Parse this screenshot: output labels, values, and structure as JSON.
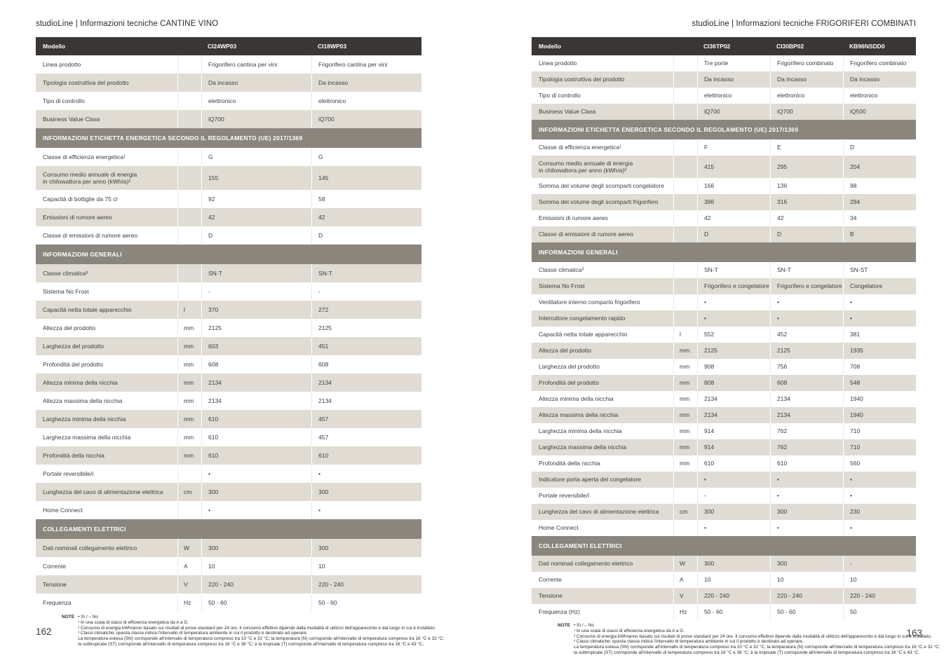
{
  "colors": {
    "model_header_bg": "#3a3634",
    "section_header_bg": "#8a857d",
    "row_alt_bg": "#e0dcd4",
    "row_bg": "#ffffff",
    "header_text": "#ffffff",
    "body_text": "#3f3c38"
  },
  "pages": [
    {
      "page_number": "162",
      "header": "studioLine | Informazioni tecniche CANTINE VINO",
      "table": {
        "model_header_label": "Modello",
        "models": [
          "CI24WP03",
          "CI18WP03"
        ],
        "sections": [
          {
            "title": "",
            "rows": [
              {
                "label": "Linea prodotto",
                "unit": "",
                "values": [
                  "Frigorifero cantina per vini",
                  "Frigorifero cantina per vini"
                ]
              },
              {
                "label": "Tipologia costruttiva del prodotto",
                "unit": "",
                "values": [
                  "Da incasso",
                  "Da incasso"
                ]
              },
              {
                "label": "Tipo di controllo",
                "unit": "",
                "values": [
                  "elettronico",
                  "elettronico"
                ]
              },
              {
                "label": "Business Value Class",
                "unit": "",
                "values": [
                  "iQ700",
                  "iQ700"
                ]
              }
            ]
          },
          {
            "title": "INFORMAZIONI ETICHETTA ENERGETICA SECONDO IL REGOLAMENTO (UE) 2017/1369",
            "rows": [
              {
                "label": "Classe di efficienza energetica¹",
                "unit": "",
                "values": [
                  "G",
                  "G"
                ]
              },
              {
                "label": "Consumo medio annuale di energia\nin chilowattora per anno (kWh/a)²",
                "unit": "",
                "values": [
                  "155",
                  "145"
                ]
              },
              {
                "label": "Capacità di bottiglie da 75 cl",
                "unit": "",
                "values": [
                  "92",
                  "58"
                ]
              },
              {
                "label": "Emissioni di rumore aereo",
                "unit": "",
                "values": [
                  "42",
                  "42"
                ]
              },
              {
                "label": "Classe di emissioni di rumore aereo",
                "unit": "",
                "values": [
                  "D",
                  "D"
                ]
              }
            ]
          },
          {
            "title": "INFORMAZIONI GENERALI",
            "rows": [
              {
                "label": "Classe climatica³",
                "unit": "",
                "values": [
                  "SN-T",
                  "SN-T"
                ]
              },
              {
                "label": "Sistema No Frost",
                "unit": "",
                "values": [
                  "-",
                  "-"
                ]
              },
              {
                "label": "Capacità netta totale apparecchio",
                "unit": "l",
                "values": [
                  "370",
                  "272"
                ]
              },
              {
                "label": "Altezza del prodotto",
                "unit": "mm",
                "values": [
                  "2125",
                  "2125"
                ]
              },
              {
                "label": "Larghezza del prodotto",
                "unit": "mm",
                "values": [
                  "603",
                  "451"
                ]
              },
              {
                "label": "Profondità del prodotto",
                "unit": "mm",
                "values": [
                  "608",
                  "608"
                ]
              },
              {
                "label": "Altezza minima della nicchia",
                "unit": "mm",
                "values": [
                  "2134",
                  "2134"
                ]
              },
              {
                "label": "Altezza massima della nicchia",
                "unit": "mm",
                "values": [
                  "2134",
                  "2134"
                ]
              },
              {
                "label": "Larghezza minima della nicchia",
                "unit": "mm",
                "values": [
                  "610",
                  "457"
                ]
              },
              {
                "label": "Larghezza massima della nicchia",
                "unit": "mm",
                "values": [
                  "610",
                  "457"
                ]
              },
              {
                "label": "Profondità della nicchia",
                "unit": "mm",
                "values": [
                  "610",
                  "610"
                ]
              },
              {
                "label": "Portale reversibile/i",
                "unit": "",
                "values": [
                  "•",
                  "•"
                ]
              },
              {
                "label": "Lunghezza del cavo di alimentazione elettrica",
                "unit": "cm",
                "values": [
                  "300",
                  "300"
                ]
              },
              {
                "label": "Home Connect",
                "unit": "",
                "values": [
                  "•",
                  "•"
                ]
              }
            ]
          },
          {
            "title": "COLLEGAMENTI ELETTRICI",
            "rows": [
              {
                "label": "Dati nominali collegamento elettrico",
                "unit": "W",
                "values": [
                  "300",
                  "300"
                ]
              },
              {
                "label": "Corrente",
                "unit": "A",
                "values": [
                  "10",
                  "10"
                ]
              },
              {
                "label": "Tensione",
                "unit": "V",
                "values": [
                  "220 - 240",
                  "220 - 240"
                ]
              },
              {
                "label": "Frequenza",
                "unit": "Hz",
                "values": [
                  "50 - 60",
                  "50 - 60"
                ]
              }
            ]
          }
        ]
      },
      "note": {
        "label": "NOTE",
        "lines": [
          "• Sì / – No",
          "¹ In una scala di classi di efficienza energetica da A a G.",
          "² Consumo di energia kWh/anno basato sui risultati di prove standard per 24 ore. Il consumo effettivo dipende dalla modalità di utilizzo dell'apparecchio e dal luogo in cui è installato.",
          "³ Classi climatiche: questa classe indica l'intervallo di temperatura ambiente in cui il prodotto è destinato ad operare.",
          "La temperatura estesa (SN) corrisponde all'intervallo di temperatura compreso tra 10 °C e 32 °C; la temperatura (N) corrisponde all'intervallo di temperatura compreso tra 16 °C e 32 °C;",
          "la subtropicale (ST) corrisponde all'intervallo di temperatura compreso tra 16 °C e 38 °C; e la tropicale (T) corrisponde all'intervallo di temperatura compreso tra 16 °C e 43 °C."
        ]
      }
    },
    {
      "page_number": "163",
      "header": "studioLine | Informazioni tecniche FRIGORIFERI COMBINATI",
      "table": {
        "model_header_label": "Modello",
        "models": [
          "CI36TP02",
          "CI30BP02",
          "KB96NSDD0"
        ],
        "sections": [
          {
            "title": "",
            "rows": [
              {
                "label": "Linea prodotto",
                "unit": "",
                "values": [
                  "Tre porte",
                  "Frigorifero combinato",
                  "Frigorifero combinato"
                ]
              },
              {
                "label": "Tipologia costruttiva del prodotto",
                "unit": "",
                "values": [
                  "Da incasso",
                  "Da incasso",
                  "Da incasso"
                ]
              },
              {
                "label": "Tipo di controllo",
                "unit": "",
                "values": [
                  "elettronico",
                  "elettronico",
                  "elettronico"
                ]
              },
              {
                "label": "Business Value Class",
                "unit": "",
                "values": [
                  "iQ700",
                  "iQ700",
                  "iQ500"
                ]
              }
            ]
          },
          {
            "title": "INFORMAZIONI ETICHETTA ENERGETICA SECONDO IL REGOLAMENTO (UE) 2017/1369",
            "rows": [
              {
                "label": "Classe di efficienza energetica¹",
                "unit": "",
                "values": [
                  "F",
                  "E",
                  "D"
                ]
              },
              {
                "label": "Consumo medio annuale di energia\nin chilowattora per anno (kWh/a)²",
                "unit": "",
                "values": [
                  "415",
                  "295",
                  "204"
                ]
              },
              {
                "label": "Somma del volume degli scomparti congelatore",
                "unit": "",
                "values": [
                  "166",
                  "136",
                  "98"
                ]
              },
              {
                "label": "Somma del volume degli scomparti frigorifero",
                "unit": "",
                "values": [
                  "386",
                  "316",
                  "284"
                ]
              },
              {
                "label": "Emissioni di rumore aereo",
                "unit": "",
                "values": [
                  "42",
                  "42",
                  "34"
                ]
              },
              {
                "label": "Classe di emissioni di rumore aereo",
                "unit": "",
                "values": [
                  "D",
                  "D",
                  "B"
                ]
              }
            ]
          },
          {
            "title": "INFORMAZIONI GENERALI",
            "rows": [
              {
                "label": "Classe climatica³",
                "unit": "",
                "values": [
                  "SN-T",
                  "SN-T",
                  "SN-ST"
                ]
              },
              {
                "label": "Sistema No Frost",
                "unit": "",
                "values": [
                  "Frigorifero e congelatore",
                  "Frigorifero e congelatore",
                  "Congelatore"
                ]
              },
              {
                "label": "Ventilatore interno comparto frigorifero",
                "unit": "",
                "values": [
                  "•",
                  "•",
                  "•"
                ]
              },
              {
                "label": "Interruttore congelamento rapido",
                "unit": "",
                "values": [
                  "•",
                  "•",
                  "•"
                ]
              },
              {
                "label": "Capacità netta totale apparecchio",
                "unit": "l",
                "values": [
                  "552",
                  "452",
                  "381"
                ]
              },
              {
                "label": "Altezza del prodotto",
                "unit": "mm",
                "values": [
                  "2125",
                  "2125",
                  "1935"
                ]
              },
              {
                "label": "Larghezza del prodotto",
                "unit": "mm",
                "values": [
                  "908",
                  "756",
                  "708"
                ]
              },
              {
                "label": "Profondità del prodotto",
                "unit": "mm",
                "values": [
                  "608",
                  "608",
                  "548"
                ]
              },
              {
                "label": "Altezza minima della nicchia",
                "unit": "mm",
                "values": [
                  "2134",
                  "2134",
                  "1940"
                ]
              },
              {
                "label": "Altezza massima della nicchia",
                "unit": "mm",
                "values": [
                  "2134",
                  "2134",
                  "1940"
                ]
              },
              {
                "label": "Larghezza minima della nicchia",
                "unit": "mm",
                "values": [
                  "914",
                  "762",
                  "710"
                ]
              },
              {
                "label": "Larghezza massima della nicchia",
                "unit": "mm",
                "values": [
                  "914",
                  "762",
                  "710"
                ]
              },
              {
                "label": "Profondità della nicchia",
                "unit": "mm",
                "values": [
                  "610",
                  "610",
                  "560"
                ]
              },
              {
                "label": "Indicatore porta aperta del congelatore",
                "unit": "",
                "values": [
                  "•",
                  "•",
                  "•"
                ]
              },
              {
                "label": "Portale reversibile/i",
                "unit": "",
                "values": [
                  "-",
                  "•",
                  "•"
                ]
              },
              {
                "label": "Lunghezza del cavo di alimentazione elettrica",
                "unit": "cm",
                "values": [
                  "300",
                  "300",
                  "230"
                ]
              },
              {
                "label": "Home Connect",
                "unit": "",
                "values": [
                  "•",
                  "•",
                  "•"
                ]
              }
            ]
          },
          {
            "title": "COLLEGAMENTI ELETTRICI",
            "rows": [
              {
                "label": "Dati nominali collegamento elettrico",
                "unit": "W",
                "values": [
                  "300",
                  "300",
                  "-"
                ]
              },
              {
                "label": "Corrente",
                "unit": "A",
                "values": [
                  "10",
                  "10",
                  "10"
                ]
              },
              {
                "label": "Tensione",
                "unit": "V",
                "values": [
                  "220 - 240",
                  "220 - 240",
                  "220 - 240"
                ]
              },
              {
                "label": "Frequenza (Hz)",
                "unit": "Hz",
                "values": [
                  "50 - 60",
                  "50 - 60",
                  "50"
                ]
              }
            ]
          }
        ]
      },
      "note": {
        "label": "NOTE",
        "lines": [
          "• Sì / – No",
          "¹ In una scala di classi di efficienza energetica da A a G.",
          "² Consumo di energia kWh/anno basato sui risultati di prove standard per 24 ore. Il consumo effettivo dipende dalla modalità di utilizzo dell'apparecchio e dal luogo in cui è installato.",
          "³ Classi climatiche: questa classe indica l'intervallo di temperatura ambiente in cui il prodotto è destinato ad operare.",
          "La temperatura estesa (SN) corrisponde all'intervallo di temperatura compreso tra 10 °C e 32 °C; la temperatura (N) corrisponde all'intervallo di temperatura compreso tra 16 °C e 32 °C;",
          "la subtropicale (ST) corrisponde all'intervallo di temperatura compreso tra 16 °C e 38 °C; e la tropicale (T) corrisponde all'intervallo di temperatura compreso tra 16 °C e 43 °C."
        ]
      }
    }
  ]
}
